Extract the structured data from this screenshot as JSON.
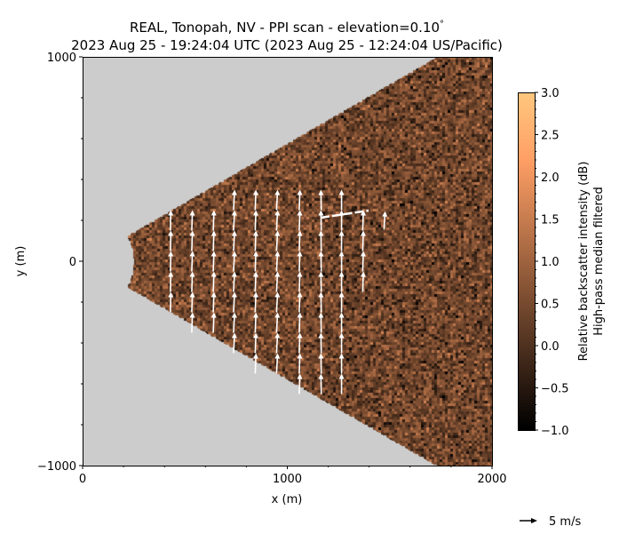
{
  "chart_data": {
    "type": "heatmap",
    "title": "REAL, Tonopah, NV - PPI scan - elevation=0.10$^\\circ$",
    "title_line1": "REAL, Tonopah, NV - PPI scan - elevation=0.10",
    "title_degree": "°",
    "title_line2": "2023 Aug 25 - 19:24:04 UTC (2023 Aug 25 - 12:24:04 US/Pacific)",
    "xlabel": "x (m)",
    "ylabel": "y (m)",
    "xlim": [
      0,
      2000
    ],
    "ylim": [
      -1000,
      1000
    ],
    "xticks": [
      "0",
      "1000",
      "2000"
    ],
    "yticks": [
      "−1000",
      "0",
      "1000"
    ],
    "background_color": "#cccccc",
    "scan_sector": {
      "min_range_m": 250,
      "azimuth_half_width_deg": 30
    },
    "colorbar": {
      "colormap": "copper",
      "vmin": -1.0,
      "vmax": 3.0,
      "ticks": [
        "−1.0",
        "−0.5",
        "0.0",
        "0.5",
        "1.0",
        "1.5",
        "2.0",
        "2.5",
        "3.0"
      ],
      "label_line1": "Relative backscatter intensity (dB)",
      "label_line2": "High-pass median filtered"
    },
    "quiver": {
      "color": "#ffffff",
      "key_value_ms": 5,
      "key_label": "5 m/s",
      "columns": [
        {
          "x": 430,
          "y": [
            -200,
            -100,
            0,
            100,
            200
          ],
          "u": 0.1,
          "v": 5.6
        },
        {
          "x": 535,
          "y": [
            -300,
            -200,
            -100,
            0,
            100,
            200
          ],
          "u": 0.2,
          "v": 5.6
        },
        {
          "x": 640,
          "y": [
            -300,
            -200,
            -100,
            0,
            100,
            200
          ],
          "u": 0.2,
          "v": 5.6
        },
        {
          "x": 740,
          "y": [
            -400,
            -300,
            -200,
            -100,
            0,
            100,
            200,
            300
          ],
          "u": 0.3,
          "v": 5.6
        },
        {
          "x": 845,
          "y": [
            -500,
            -400,
            -300,
            -200,
            -100,
            0,
            100,
            200,
            300
          ],
          "u": 0.2,
          "v": 5.6
        },
        {
          "x": 950,
          "y": [
            -500,
            -400,
            -300,
            -200,
            -100,
            0,
            100,
            200,
            300
          ],
          "u": 0.3,
          "v": 5.6
        },
        {
          "x": 1060,
          "y": [
            -600,
            -500,
            -400,
            -300,
            -200,
            -100,
            0,
            100,
            200,
            300
          ],
          "u": 0.2,
          "v": 5.6
        },
        {
          "x": 1165,
          "y": [
            -600,
            -500,
            -400,
            -300,
            -200,
            -100,
            0,
            100,
            200,
            300
          ],
          "u": -0.1,
          "v": 5.6
        },
        {
          "x": 1265,
          "y": [
            -600,
            -500,
            -400,
            -300,
            -200,
            -100,
            0,
            100,
            200,
            300
          ],
          "u": 0.0,
          "v": 5.6
        },
        {
          "x": 1370,
          "y": [
            -100,
            0,
            100,
            200
          ],
          "u": 0.2,
          "v": 5.6
        },
        {
          "x": 1475,
          "y": [
            200
          ],
          "u": 0.3,
          "v": 5.0
        }
      ]
    }
  }
}
